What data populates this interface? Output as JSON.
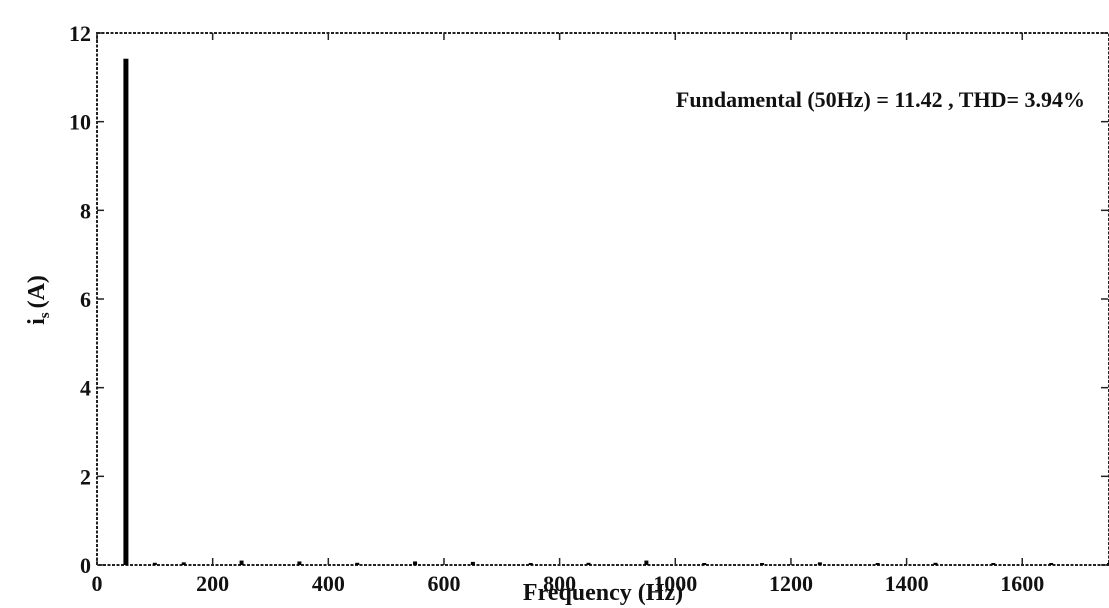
{
  "chart_data": {
    "type": "bar",
    "title": "",
    "xlabel": "Frequency (Hz)",
    "ylabel_main": "i",
    "ylabel_sub": "s",
    "ylabel_unit": "(A)",
    "annotation": "Fundamental (50Hz) = 11.42 , THD= 3.94%",
    "xlim": [
      0,
      1750
    ],
    "ylim": [
      0,
      12
    ],
    "xticks": [
      "0",
      "200",
      "400",
      "600",
      "800",
      "1000",
      "1200",
      "1400",
      "1600"
    ],
    "yticks": [
      "0",
      "2",
      "4",
      "6",
      "8",
      "10",
      "12"
    ],
    "bar_color": "#000000",
    "points": [
      {
        "x": 50,
        "y": 11.42
      },
      {
        "x": 100,
        "y": 0.05
      },
      {
        "x": 150,
        "y": 0.06
      },
      {
        "x": 250,
        "y": 0.1
      },
      {
        "x": 350,
        "y": 0.08
      },
      {
        "x": 450,
        "y": 0.05
      },
      {
        "x": 550,
        "y": 0.08
      },
      {
        "x": 650,
        "y": 0.07
      },
      {
        "x": 750,
        "y": 0.04
      },
      {
        "x": 850,
        "y": 0.05
      },
      {
        "x": 950,
        "y": 0.1
      },
      {
        "x": 1050,
        "y": 0.04
      },
      {
        "x": 1150,
        "y": 0.04
      },
      {
        "x": 1250,
        "y": 0.06
      },
      {
        "x": 1350,
        "y": 0.03
      },
      {
        "x": 1450,
        "y": 0.05
      },
      {
        "x": 1550,
        "y": 0.04
      },
      {
        "x": 1650,
        "y": 0.03
      },
      {
        "x": 1750,
        "y": 0.03
      }
    ]
  }
}
